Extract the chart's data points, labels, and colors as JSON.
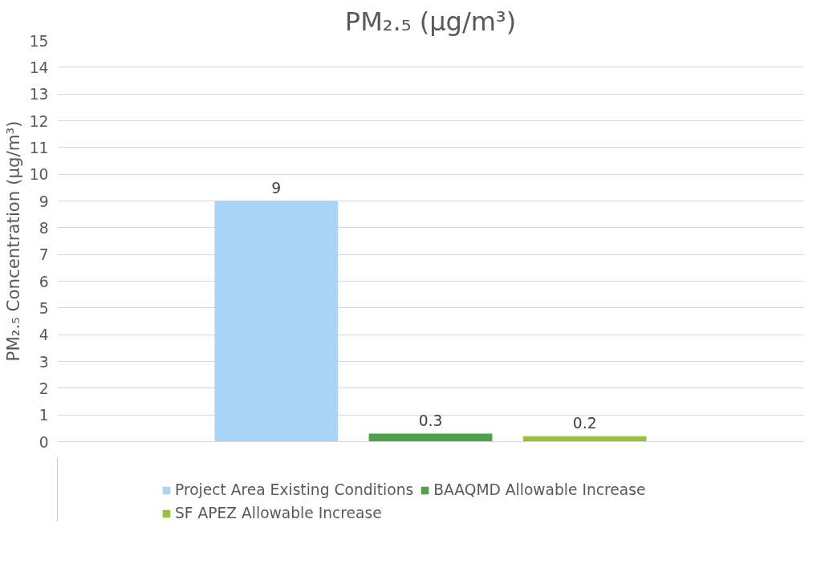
{
  "chart_data": {
    "type": "bar",
    "title": "PM₂.₅ (µg/m³)",
    "ylabel": "PM₂.₅ Concentration (µg/m³)",
    "categories": [
      null
    ],
    "series": [
      {
        "name": "Project Area Existing Conditions",
        "color": "#a9d4f5",
        "values": [
          9
        ]
      },
      {
        "name": "BAAQMD Allowable Increase",
        "color": "#4ea24a",
        "values": [
          0.3
        ]
      },
      {
        "name": "SF APEZ Allowable Increase",
        "color": "#9bc03b",
        "values": [
          0.2
        ]
      }
    ],
    "ylim": [
      0,
      15
    ],
    "yticks": [
      0,
      1,
      2,
      3,
      4,
      5,
      6,
      7,
      8,
      9,
      10,
      11,
      12,
      13,
      14,
      15
    ],
    "grid": "y",
    "legend": "bottom",
    "data_labels": true
  }
}
